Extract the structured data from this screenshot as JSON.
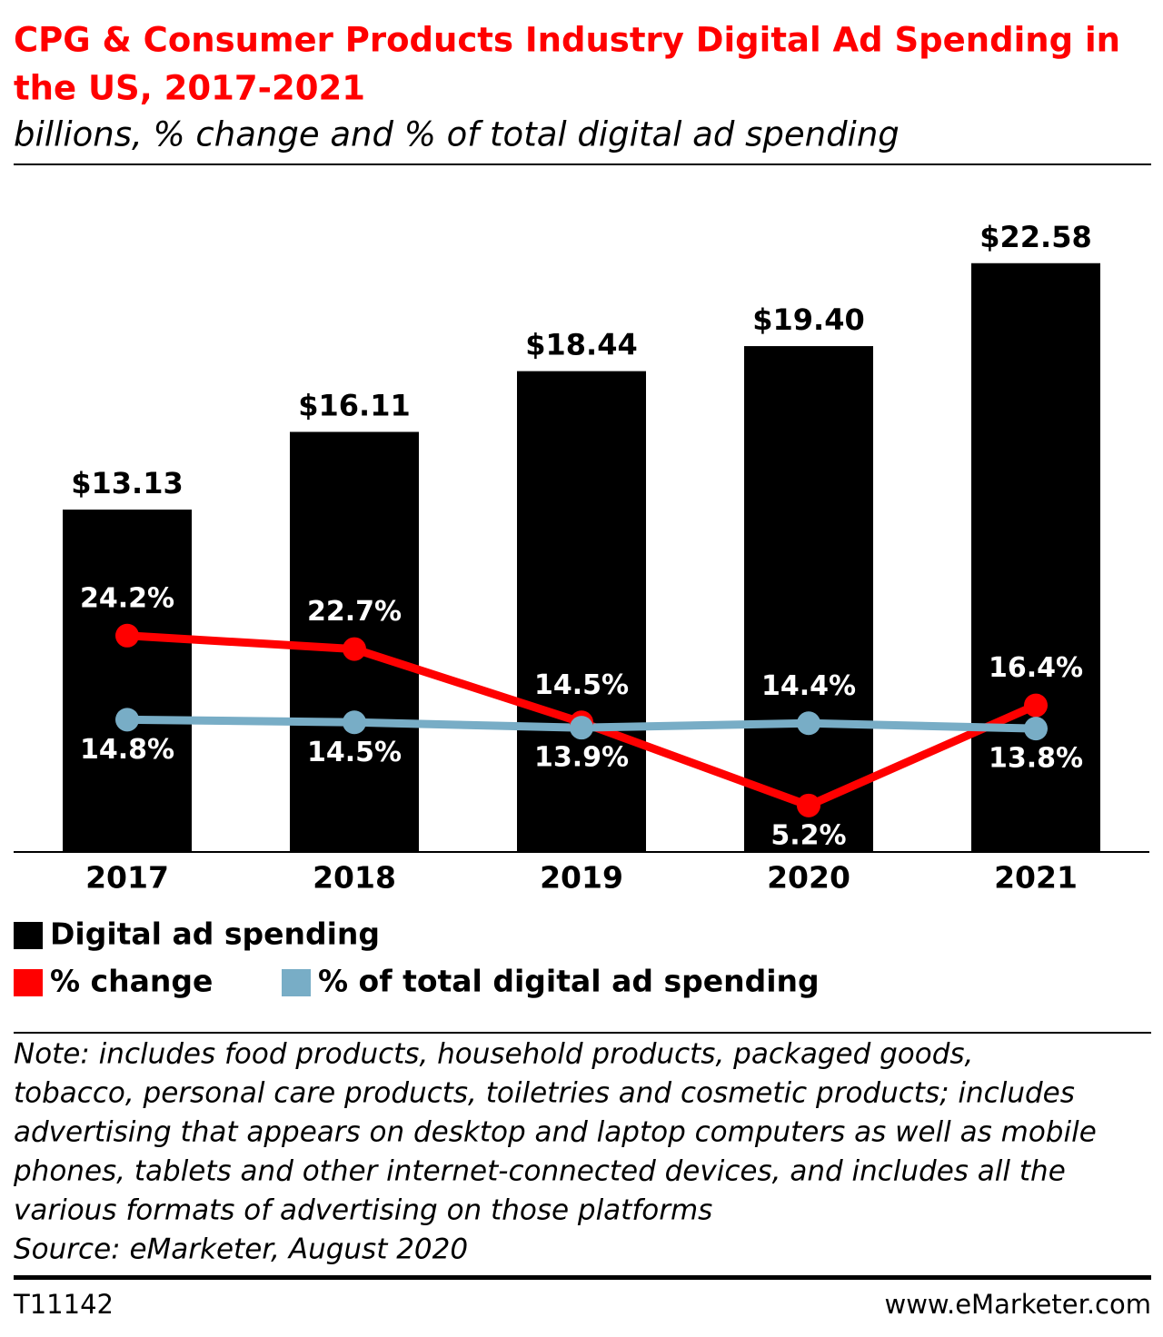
{
  "chart_data": {
    "type": "bar",
    "title": [
      "CPG & Consumer Products Industry Digital Ad Spending in",
      "the US, 2017-2021"
    ],
    "subtitle": "billions, % change and % of total digital ad spending",
    "categories": [
      "2017",
      "2018",
      "2019",
      "2020",
      "2021"
    ],
    "ylim": [
      0,
      24
    ],
    "y2lim": [
      0,
      70
    ],
    "series": [
      {
        "name": "Digital ad spending",
        "type": "bar",
        "color": "#000000",
        "values": [
          13.13,
          16.11,
          18.44,
          19.4,
          22.58
        ],
        "value_labels": [
          "$13.13",
          "$16.11",
          "$18.44",
          "$19.40",
          "$22.58"
        ]
      },
      {
        "name": "% change",
        "type": "line",
        "axis": "y2",
        "color": "#ff0000",
        "values": [
          24.2,
          22.7,
          14.5,
          5.2,
          16.4
        ],
        "value_labels": [
          "24.2%",
          "22.7%",
          "14.5%",
          "5.2%",
          "16.4%"
        ]
      },
      {
        "name": "% of total digital ad spending",
        "type": "line",
        "axis": "y2",
        "color": "#78adc6",
        "values": [
          14.8,
          14.5,
          13.9,
          14.4,
          13.8
        ],
        "value_labels": [
          "14.8%",
          "14.5%",
          "13.9%",
          "14.4%",
          "13.8%"
        ]
      }
    ],
    "note": [
      "Note: includes food products, household products, packaged goods,",
      "tobacco, personal care products, toiletries and cosmetic products; includes",
      "advertising that appears on desktop and laptop computers as well as mobile",
      "phones, tablets and other internet-connected devices, and includes all the",
      "various formats of advertising on those platforms"
    ],
    "source": "Source: eMarketer, August 2020",
    "chart_id": "T11142",
    "website": "www.eMarketer.com"
  }
}
